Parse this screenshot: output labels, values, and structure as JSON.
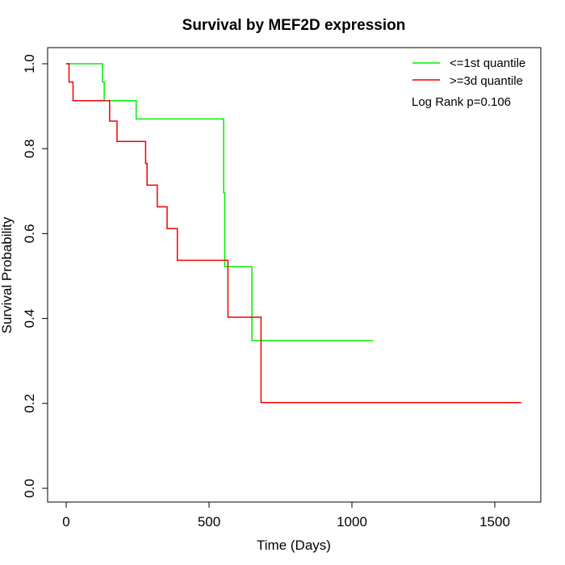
{
  "chart_data": {
    "type": "line",
    "subtype": "kaplan-meier step",
    "title": "Survival by MEF2D expression",
    "xlabel": "Time (Days)",
    "ylabel": "Survival Probability",
    "xlim": [
      0,
      1650
    ],
    "ylim": [
      0,
      1.0
    ],
    "x_ticks": [
      0,
      500,
      1000,
      1500
    ],
    "x_tick_labels": [
      "0",
      "500",
      "1000",
      "1500"
    ],
    "y_ticks": [
      0.0,
      0.2,
      0.4,
      0.6,
      0.8,
      1.0
    ],
    "y_tick_labels": [
      "0.0",
      "0.2",
      "0.4",
      "0.6",
      "0.8",
      "1.0"
    ],
    "grid": false,
    "legend_position": "top-right",
    "annotation": "Log Rank p=0.106",
    "series": [
      {
        "name": "<=1st quantile",
        "color": "#00ee00",
        "x": [
          0,
          127,
          127,
          133,
          133,
          245,
          245,
          551,
          551,
          555,
          555,
          650,
          650,
          1075
        ],
        "y": [
          1.0,
          1.0,
          0.957,
          0.957,
          0.913,
          0.913,
          0.87,
          0.87,
          0.696,
          0.696,
          0.522,
          0.522,
          0.348,
          0.348
        ]
      },
      {
        "name": ">=3d quantile",
        "color": "#ee0000",
        "x": [
          0,
          10,
          10,
          24,
          24,
          152,
          152,
          178,
          178,
          278,
          278,
          283,
          283,
          319,
          319,
          353,
          353,
          389,
          389,
          566,
          566,
          682,
          682,
          1593
        ],
        "y": [
          1.0,
          1.0,
          0.957,
          0.957,
          0.913,
          0.913,
          0.865,
          0.865,
          0.817,
          0.817,
          0.765,
          0.765,
          0.714,
          0.714,
          0.663,
          0.663,
          0.612,
          0.612,
          0.537,
          0.537,
          0.403,
          0.403,
          0.202,
          0.202
        ]
      }
    ]
  }
}
